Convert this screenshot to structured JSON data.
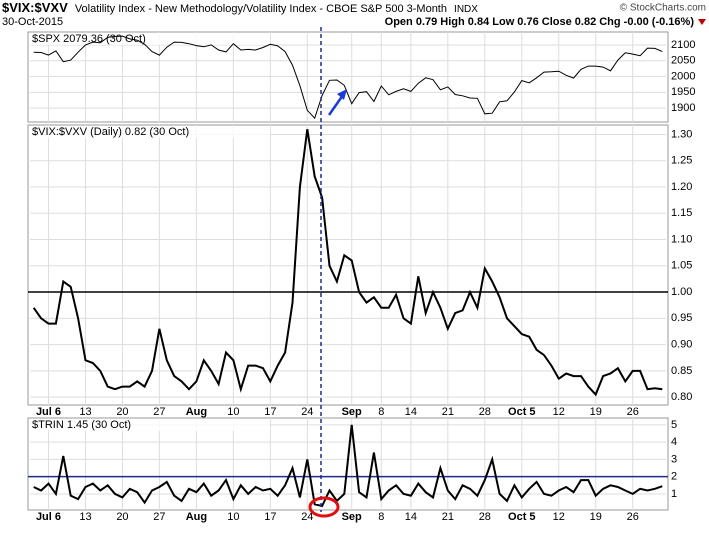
{
  "header": {
    "symbol": "$VIX:$VXV",
    "name": "Volatility Index - New Methodology/Volatility Index - CBOE S&P 500 3-Month",
    "exchange": "INDX",
    "date": "30-Oct-2015",
    "quote": "Open 0.79 High 0.84 Low 0.76 Close 0.82 Chg -0.00 (-0.16%)",
    "credit": "© StockCharts.com"
  },
  "chart_data": [
    {
      "type": "line",
      "title": "$SPX 2079.36 (30 Oct)",
      "color": "#000000",
      "values": [
        2077,
        2076,
        2068,
        2081,
        2047,
        2052,
        2077,
        2100,
        2109,
        2107,
        2124,
        2127,
        2128,
        2119,
        2115,
        2102,
        2079,
        2068,
        2093,
        2109,
        2108,
        2104,
        2098,
        2094,
        2100,
        2084,
        2078,
        2104,
        2084,
        2086,
        2084,
        2092,
        2102,
        2097,
        2079,
        2036,
        1971,
        1893,
        1868,
        1940,
        1988,
        1989,
        1972,
        1914,
        1949,
        1952,
        1921,
        1970,
        1942,
        1953,
        1961,
        1953,
        1979,
        1996,
        1990,
        1958,
        1967,
        1943,
        1939,
        1932,
        1931,
        1882,
        1884,
        1920,
        1923,
        1951,
        1987,
        1980,
        1996,
        2014,
        2015,
        2017,
        2004,
        1995,
        2023,
        2033,
        2033,
        2030,
        2018,
        2052,
        2075,
        2071,
        2066,
        2090,
        2089,
        2079
      ],
      "ylim": [
        1856,
        2141
      ],
      "yticks": [
        1900,
        1950,
        2000,
        2050,
        2100
      ],
      "grid": true
    },
    {
      "type": "line",
      "title": "$VIX:$VXV (Daily) 0.82 (30 Oct)",
      "color": "#000000",
      "categories": [
        null,
        null,
        "Jul 6",
        null,
        null,
        null,
        null,
        "13",
        null,
        null,
        null,
        null,
        "20",
        null,
        null,
        null,
        null,
        "27",
        null,
        null,
        null,
        null,
        "Aug",
        null,
        null,
        null,
        null,
        "10",
        null,
        null,
        null,
        null,
        "17",
        null,
        null,
        null,
        null,
        "24",
        null,
        null,
        null,
        null,
        null,
        "Sep",
        null,
        null,
        null,
        "8",
        null,
        null,
        null,
        "14",
        null,
        null,
        null,
        null,
        "21",
        null,
        null,
        null,
        null,
        "28",
        null,
        null,
        null,
        null,
        "Oct 5",
        null,
        null,
        null,
        null,
        "12",
        null,
        null,
        null,
        null,
        "19",
        null,
        null,
        null,
        null,
        "26",
        null,
        null,
        null,
        null
      ],
      "values": [
        0.97,
        0.95,
        0.94,
        0.94,
        1.02,
        1.01,
        0.95,
        0.87,
        0.865,
        0.85,
        0.82,
        0.815,
        0.82,
        0.82,
        0.83,
        0.82,
        0.85,
        0.93,
        0.87,
        0.84,
        0.83,
        0.815,
        0.83,
        0.87,
        0.85,
        0.825,
        0.885,
        0.87,
        0.815,
        0.86,
        0.86,
        0.855,
        0.83,
        0.86,
        0.885,
        0.98,
        1.2,
        1.31,
        1.22,
        1.18,
        1.05,
        1.02,
        1.07,
        1.06,
        1.0,
        0.98,
        0.99,
        0.97,
        0.97,
        0.995,
        0.95,
        0.94,
        1.03,
        0.96,
        1.0,
        0.97,
        0.93,
        0.96,
        0.965,
        1.0,
        0.97,
        1.045,
        1.02,
        0.99,
        0.95,
        0.935,
        0.92,
        0.915,
        0.89,
        0.88,
        0.86,
        0.835,
        0.845,
        0.84,
        0.84,
        0.82,
        0.805,
        0.84,
        0.845,
        0.855,
        0.83,
        0.85,
        0.85,
        0.815,
        0.817,
        0.815
      ],
      "ylim": [
        0.785,
        1.318
      ],
      "yticks": [
        {
          "value": 0.8,
          "label": "0.80"
        },
        {
          "value": 0.85,
          "label": "0.85"
        },
        {
          "value": 0.9,
          "label": "0.90"
        },
        {
          "value": 0.95,
          "label": "0.95"
        },
        {
          "value": 1.0,
          "label": "1.00"
        },
        {
          "value": 1.05,
          "label": "1.05"
        },
        {
          "value": 1.1,
          "label": "1.10"
        },
        {
          "value": 1.15,
          "label": "1.15"
        },
        {
          "value": 1.2,
          "label": "1.20"
        },
        {
          "value": 1.25,
          "label": "1.25"
        },
        {
          "value": 1.3,
          "label": "1.30"
        }
      ],
      "hline": 1.0,
      "hline_color": "#000000",
      "grid": true
    },
    {
      "type": "line",
      "title": "$TRIN 1.45 (30 Oct)",
      "color": "#000000",
      "categories": [
        null,
        null,
        "Jul 6",
        null,
        null,
        null,
        null,
        "13",
        null,
        null,
        null,
        null,
        "20",
        null,
        null,
        null,
        null,
        "27",
        null,
        null,
        null,
        null,
        "Aug",
        null,
        null,
        null,
        null,
        "10",
        null,
        null,
        null,
        null,
        "17",
        null,
        null,
        null,
        null,
        "24",
        null,
        null,
        null,
        null,
        null,
        "Sep",
        null,
        null,
        null,
        "8",
        null,
        null,
        null,
        "14",
        null,
        null,
        null,
        null,
        "21",
        null,
        null,
        null,
        null,
        "28",
        null,
        null,
        null,
        null,
        "Oct 5",
        null,
        null,
        null,
        null,
        "12",
        null,
        null,
        null,
        null,
        "19",
        null,
        null,
        null,
        null,
        "26",
        null,
        null,
        null,
        null
      ],
      "values": [
        1.4,
        1.2,
        1.6,
        1.0,
        3.2,
        0.9,
        0.7,
        1.4,
        1.6,
        1.2,
        1.5,
        1.0,
        0.8,
        1.3,
        1.1,
        0.5,
        1.2,
        1.4,
        1.7,
        0.9,
        0.6,
        1.3,
        1.1,
        1.6,
        0.9,
        1.2,
        1.8,
        0.7,
        1.5,
        1.0,
        1.4,
        1.2,
        1.3,
        0.9,
        1.5,
        2.5,
        0.8,
        3.0,
        0.4,
        0.3,
        1.2,
        0.6,
        1.0,
        5.0,
        1.1,
        0.8,
        3.4,
        0.7,
        1.2,
        1.5,
        1.0,
        0.9,
        1.6,
        1.1,
        0.8,
        2.5,
        1.2,
        0.7,
        1.5,
        1.3,
        0.9,
        1.8,
        3.0,
        1.0,
        0.6,
        1.5,
        0.8,
        1.3,
        1.7,
        1.0,
        0.9,
        1.2,
        1.4,
        1.1,
        1.8,
        1.8,
        0.9,
        1.3,
        1.5,
        1.4,
        1.2,
        1.0,
        1.3,
        1.2,
        1.3,
        1.45
      ],
      "ylim": [
        0.07,
        5.4
      ],
      "yticks": [
        1,
        2,
        3,
        4,
        5
      ],
      "hline": 2,
      "hline_color": "#1f2a8c",
      "grid": true
    }
  ]
}
